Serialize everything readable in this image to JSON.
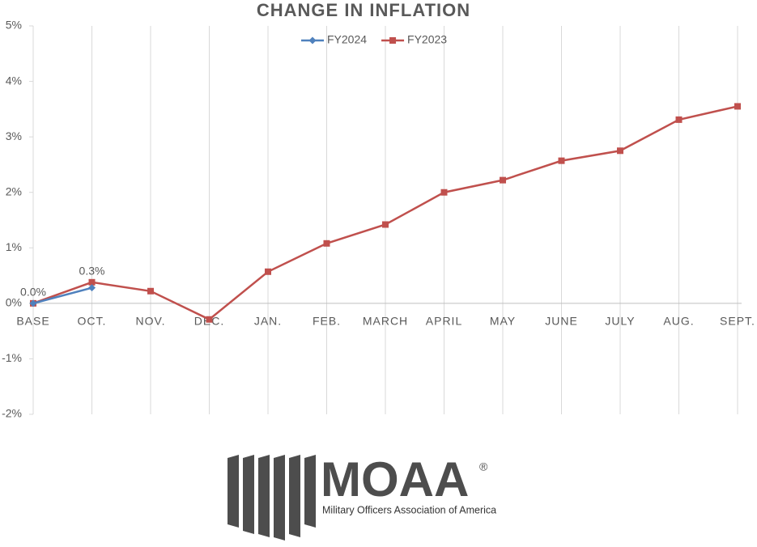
{
  "chart_data": {
    "type": "line",
    "title": "CHANGE IN INFLATION",
    "categories": [
      "BASE",
      "OCT.",
      "NOV.",
      "DEC.",
      "JAN.",
      "FEB.",
      "MARCH",
      "APRIL",
      "MAY",
      "JUNE",
      "JULY",
      "AUG.",
      "SEPT."
    ],
    "series": [
      {
        "name": "FY2024",
        "color": "#4f81bd",
        "marker": "diamond",
        "values": [
          0,
          0.28,
          null,
          null,
          null,
          null,
          null,
          null,
          null,
          null,
          null,
          null,
          null
        ],
        "value_labels": [
          "0.0%",
          "0.3%",
          null,
          null,
          null,
          null,
          null,
          null,
          null,
          null,
          null,
          null,
          null
        ]
      },
      {
        "name": "FY2023",
        "color": "#c0504d",
        "marker": "square",
        "values": [
          0,
          0.38,
          0.22,
          -0.29,
          0.57,
          1.08,
          1.42,
          2.0,
          2.22,
          2.57,
          2.75,
          3.31,
          3.55
        ]
      }
    ],
    "ylim": [
      -2,
      5
    ],
    "yticks": [
      {
        "value": -2,
        "label": "-2%"
      },
      {
        "value": -1,
        "label": "-1%"
      },
      {
        "value": 0,
        "label": "0%"
      },
      {
        "value": 1,
        "label": "1%"
      },
      {
        "value": 2,
        "label": "2%"
      },
      {
        "value": 3,
        "label": "3%"
      },
      {
        "value": 4,
        "label": "4%"
      },
      {
        "value": 5,
        "label": "5%"
      }
    ],
    "grid": "vertical",
    "legend": "top"
  },
  "logo": {
    "name": "MOAA",
    "mark": "®",
    "tagline": "Military Officers Association of America"
  }
}
